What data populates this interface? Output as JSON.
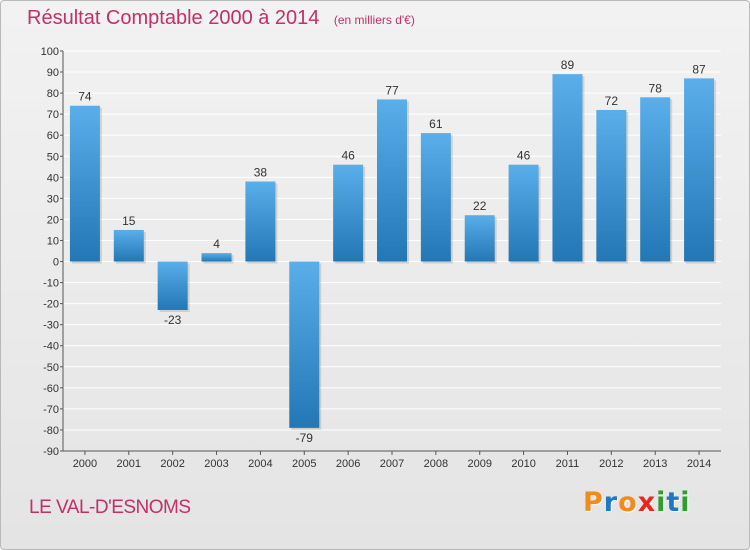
{
  "header": {
    "title": "Résultat Comptable 2000 à 2014",
    "subtitle": "(en milliers d'€)"
  },
  "footer": {
    "commune": "LE VAL-D'ESNOMS",
    "logo_text": "Proxiti"
  },
  "colors": {
    "title": "#c0306a",
    "bar_light": "#5aaeea",
    "bar_dark": "#2277b4",
    "grid": "#ffffff",
    "logo_letters": [
      "#f08c1e",
      "#1e78c8",
      "#f08c1e",
      "#e8261e",
      "#2c9f2c",
      "#1e78c8",
      "#2c9f2c"
    ]
  },
  "chart_data": {
    "type": "bar",
    "title": "Résultat Comptable 2000 à 2014",
    "subtitle": "(en milliers d'€)",
    "xlabel": "",
    "ylabel": "",
    "categories": [
      "2000",
      "2001",
      "2002",
      "2003",
      "2004",
      "2005",
      "2006",
      "2007",
      "2008",
      "2009",
      "2010",
      "2011",
      "2012",
      "2013",
      "2014"
    ],
    "values": [
      74,
      15,
      -23,
      4,
      38,
      -79,
      46,
      77,
      61,
      22,
      46,
      89,
      72,
      78,
      87
    ],
    "ylim": [
      -90,
      100
    ],
    "yticks": [
      100,
      90,
      80,
      70,
      60,
      50,
      40,
      30,
      20,
      10,
      0,
      -10,
      -20,
      -30,
      -40,
      -50,
      -60,
      -70,
      -80,
      -90
    ],
    "grid": true,
    "legend": "none"
  }
}
